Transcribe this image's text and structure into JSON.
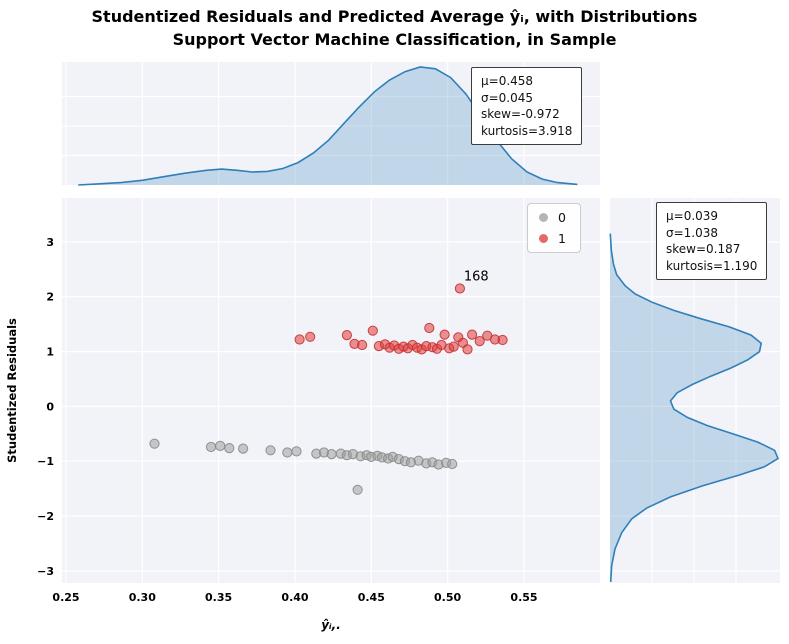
{
  "title": {
    "line1": "Studentized Residuals and Predicted Average ŷᵢ, with Distributions",
    "line2": "Support Vector Machine Classification, in Sample"
  },
  "chart_data": {
    "type": "scatter",
    "title": "Studentized Residuals and Predicted Average ŷᵢ, with Distributions",
    "subtitle": "Support Vector Machine Classification, in Sample",
    "xlabel": "ŷᵢ,.",
    "ylabel": "Studentized Residuals",
    "xlim": [
      0.2474,
      0.5998
    ],
    "ylim": [
      -3.22,
      3.8
    ],
    "grid": true,
    "xticks": [
      0.25,
      0.3,
      0.35,
      0.4,
      0.45,
      0.5,
      0.55
    ],
    "xtick_labels": [
      "0.25",
      "0.30",
      "0.35",
      "0.40",
      "0.45",
      "0.50",
      "0.55"
    ],
    "yticks": [
      -3,
      -2,
      -1,
      0,
      1,
      2,
      3
    ],
    "ytick_labels": [
      "−3",
      "−2",
      "−1",
      "0",
      "1",
      "2",
      "3"
    ],
    "colors": {
      "panel": "#f2f3f9",
      "gridline": "#ffffff",
      "kde_line": "#2f7fb8",
      "kde_fill": "rgba(47,127,184,0.25)",
      "class0": "#9e9e9e",
      "class0_edge": "#878787",
      "class1": "#e03b3b",
      "class1_edge": "#c53030"
    },
    "legend": {
      "position": "top-right",
      "entries": [
        {
          "label": "0",
          "color": "#a2a2a2"
        },
        {
          "label": "1",
          "color": "#e04343"
        }
      ]
    },
    "series": [
      {
        "name": "0",
        "color": "#9e9e9e",
        "edge": "#878787",
        "points": [
          [
            0.308,
            -0.68
          ],
          [
            0.345,
            -0.74
          ],
          [
            0.351,
            -0.72
          ],
          [
            0.357,
            -0.76
          ],
          [
            0.366,
            -0.77
          ],
          [
            0.384,
            -0.8
          ],
          [
            0.395,
            -0.84
          ],
          [
            0.401,
            -0.82
          ],
          [
            0.414,
            -0.86
          ],
          [
            0.419,
            -0.84
          ],
          [
            0.424,
            -0.87
          ],
          [
            0.43,
            -0.86
          ],
          [
            0.434,
            -0.89
          ],
          [
            0.438,
            -0.87
          ],
          [
            0.443,
            -0.91
          ],
          [
            0.447,
            -0.89
          ],
          [
            0.45,
            -0.92
          ],
          [
            0.454,
            -0.9
          ],
          [
            0.457,
            -0.93
          ],
          [
            0.461,
            -0.95
          ],
          [
            0.464,
            -0.92
          ],
          [
            0.468,
            -0.96
          ],
          [
            0.472,
            -1.0
          ],
          [
            0.476,
            -1.02
          ],
          [
            0.481,
            -0.99
          ],
          [
            0.486,
            -1.04
          ],
          [
            0.49,
            -1.02
          ],
          [
            0.494,
            -1.06
          ],
          [
            0.499,
            -1.03
          ],
          [
            0.503,
            -1.05
          ],
          [
            0.441,
            -1.52
          ]
        ]
      },
      {
        "name": "1",
        "color": "#e03b3b",
        "edge": "#c53030",
        "points": [
          [
            0.403,
            1.22
          ],
          [
            0.41,
            1.27
          ],
          [
            0.434,
            1.3
          ],
          [
            0.439,
            1.14
          ],
          [
            0.444,
            1.12
          ],
          [
            0.451,
            1.38
          ],
          [
            0.455,
            1.1
          ],
          [
            0.459,
            1.13
          ],
          [
            0.462,
            1.07
          ],
          [
            0.465,
            1.11
          ],
          [
            0.468,
            1.05
          ],
          [
            0.471,
            1.09
          ],
          [
            0.474,
            1.06
          ],
          [
            0.477,
            1.12
          ],
          [
            0.48,
            1.07
          ],
          [
            0.483,
            1.04
          ],
          [
            0.486,
            1.1
          ],
          [
            0.488,
            1.43
          ],
          [
            0.49,
            1.08
          ],
          [
            0.493,
            1.05
          ],
          [
            0.496,
            1.12
          ],
          [
            0.498,
            1.31
          ],
          [
            0.501,
            1.06
          ],
          [
            0.504,
            1.09
          ],
          [
            0.507,
            1.26
          ],
          [
            0.51,
            1.16
          ],
          [
            0.513,
            1.04
          ],
          [
            0.516,
            1.31
          ],
          [
            0.521,
            1.19
          ],
          [
            0.526,
            1.29
          ],
          [
            0.531,
            1.22
          ],
          [
            0.536,
            1.21
          ],
          [
            0.508,
            2.15
          ]
        ]
      }
    ],
    "annotations": [
      {
        "text": "168",
        "x": 0.508,
        "y": 2.15
      }
    ],
    "marginal_top": {
      "type": "kde",
      "stats_lines": [
        "μ=0.458",
        "σ=0.045",
        "skew=-0.972",
        "kurtosis=3.918"
      ],
      "curve": [
        [
          0.258,
          0.0
        ],
        [
          0.272,
          0.01
        ],
        [
          0.286,
          0.02
        ],
        [
          0.3,
          0.04
        ],
        [
          0.314,
          0.07
        ],
        [
          0.328,
          0.1
        ],
        [
          0.342,
          0.125
        ],
        [
          0.352,
          0.135
        ],
        [
          0.362,
          0.125
        ],
        [
          0.372,
          0.11
        ],
        [
          0.382,
          0.115
        ],
        [
          0.392,
          0.14
        ],
        [
          0.402,
          0.19
        ],
        [
          0.412,
          0.27
        ],
        [
          0.422,
          0.38
        ],
        [
          0.432,
          0.52
        ],
        [
          0.442,
          0.66
        ],
        [
          0.452,
          0.79
        ],
        [
          0.462,
          0.89
        ],
        [
          0.472,
          0.96
        ],
        [
          0.482,
          1.0
        ],
        [
          0.492,
          0.985
        ],
        [
          0.502,
          0.91
        ],
        [
          0.512,
          0.77
        ],
        [
          0.522,
          0.58
        ],
        [
          0.532,
          0.38
        ],
        [
          0.542,
          0.22
        ],
        [
          0.552,
          0.11
        ],
        [
          0.562,
          0.05
        ],
        [
          0.572,
          0.02
        ],
        [
          0.585,
          0.005
        ]
      ]
    },
    "marginal_right": {
      "type": "kde",
      "stats_lines": [
        "μ=0.039",
        "σ=1.038",
        "skew=0.187",
        "kurtosis=1.190"
      ],
      "curve": [
        [
          -3.2,
          0.004
        ],
        [
          -2.9,
          0.01
        ],
        [
          -2.6,
          0.03
        ],
        [
          -2.3,
          0.07
        ],
        [
          -2.05,
          0.13
        ],
        [
          -1.85,
          0.22
        ],
        [
          -1.65,
          0.36
        ],
        [
          -1.45,
          0.55
        ],
        [
          -1.25,
          0.77
        ],
        [
          -1.1,
          0.92
        ],
        [
          -0.95,
          1.0
        ],
        [
          -0.8,
          0.98
        ],
        [
          -0.65,
          0.88
        ],
        [
          -0.5,
          0.73
        ],
        [
          -0.35,
          0.58
        ],
        [
          -0.2,
          0.46
        ],
        [
          -0.05,
          0.38
        ],
        [
          0.1,
          0.36
        ],
        [
          0.25,
          0.4
        ],
        [
          0.4,
          0.49
        ],
        [
          0.55,
          0.6
        ],
        [
          0.7,
          0.72
        ],
        [
          0.85,
          0.82
        ],
        [
          1.0,
          0.89
        ],
        [
          1.15,
          0.9
        ],
        [
          1.3,
          0.84
        ],
        [
          1.45,
          0.71
        ],
        [
          1.6,
          0.54
        ],
        [
          1.75,
          0.38
        ],
        [
          1.9,
          0.25
        ],
        [
          2.05,
          0.15
        ],
        [
          2.2,
          0.09
        ],
        [
          2.4,
          0.04
        ],
        [
          2.6,
          0.02
        ],
        [
          2.85,
          0.008
        ],
        [
          3.15,
          0.002
        ]
      ]
    }
  }
}
